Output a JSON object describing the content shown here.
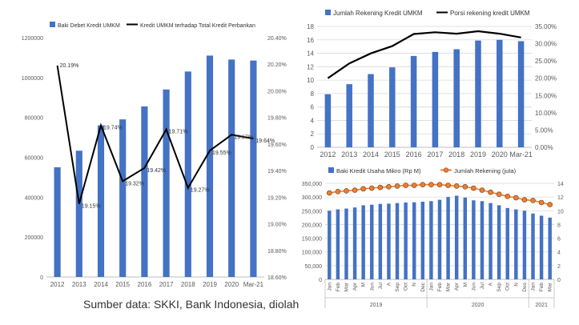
{
  "source_text": "Sumber data: SKKI, Bank Indonesia, diolah",
  "colors": {
    "bar": "#4472C4",
    "line": "#000000",
    "marker": "#ED7D31",
    "grid": "#D9D9D9",
    "axis_text": "#595959"
  },
  "chart_data": [
    {
      "type": "bar+line",
      "title": "",
      "categories": [
        "2012",
        "2013",
        "2014",
        "2015",
        "2016",
        "2017",
        "2018",
        "2019",
        "2020",
        "Mar-21"
      ],
      "series": [
        {
          "name": "Baki Debet Kredit UMKM",
          "axis": "left",
          "values": [
            550000,
            633000,
            760000,
            790000,
            855000,
            940000,
            1030000,
            1110000,
            1090000,
            1085000
          ]
        },
        {
          "name": "Kredit UMKM terhadap Total Kredit Perbankan",
          "axis": "right",
          "values": [
            20.19,
            19.15,
            19.74,
            19.32,
            19.42,
            19.71,
            19.27,
            19.55,
            19.67,
            19.64
          ],
          "labels": [
            "20.19%",
            "19.15%",
            "19.74%",
            "19.32%",
            "19.42%",
            "19.71%",
            "19.27%",
            "19.55%",
            "19.67%",
            "19.64%"
          ]
        }
      ],
      "ylim_left": [
        0,
        1200000
      ],
      "yticks_left": [
        "0",
        "200000",
        "400000",
        "600000",
        "800000",
        "1000000",
        "1200000"
      ],
      "ylim_right": [
        18.6,
        20.4
      ],
      "yticks_right": [
        "18.60%",
        "18.80%",
        "19.00%",
        "19.20%",
        "19.40%",
        "19.60%",
        "19.80%",
        "20.00%",
        "20.20%",
        "20.40%"
      ],
      "legend": "top",
      "grid": false
    },
    {
      "type": "bar+line",
      "title": "",
      "categories": [
        "2012",
        "2013",
        "2014",
        "2015",
        "2016",
        "2017",
        "2018",
        "2019",
        "2020",
        "Mar-21"
      ],
      "series": [
        {
          "name": "Jumlah Rekening Kredit UMKM",
          "axis": "left",
          "values": [
            7.9,
            9.4,
            10.9,
            11.9,
            13.6,
            14.2,
            14.6,
            15.9,
            16.0,
            15.8
          ]
        },
        {
          "name": "Porsi rekening kredit UMKM",
          "axis": "right",
          "values": [
            20.0,
            24.3,
            27.2,
            29.3,
            32.8,
            33.3,
            32.9,
            33.6,
            32.9,
            31.8
          ]
        }
      ],
      "ylim_left": [
        0,
        18
      ],
      "yticks_left": [
        "0",
        "2",
        "4",
        "6",
        "8",
        "10",
        "12",
        "14",
        "16",
        "18"
      ],
      "ylim_right": [
        0,
        35
      ],
      "yticks_right": [
        "0.00%",
        "5.00%",
        "10.00%",
        "15.00%",
        "20.00%",
        "25.00%",
        "30.00%",
        "35.00%"
      ],
      "legend": "top",
      "grid": true
    },
    {
      "type": "bar+line",
      "title": "",
      "categories": [
        "Jan",
        "Feb",
        "Mar",
        "Apr",
        "Mei",
        "Jun",
        "Jul",
        "Agt",
        "Sep",
        "Okt",
        "Nov",
        "Des",
        "Jan",
        "Feb",
        "Mar",
        "Apr",
        "Mei",
        "Jun",
        "Jul",
        "Agt",
        "Sep",
        "Okt",
        "Nov",
        "Des",
        "Jan",
        "Feb",
        "Mar"
      ],
      "tick_labels": [
        "Jan",
        "Feb",
        "Mar",
        "Apr",
        "M",
        "Jun",
        "Jul",
        "A",
        "Sep",
        "Oct",
        "N",
        "Dec",
        "Jan",
        "Feb",
        "Mar",
        "Apr",
        "M",
        "Jun",
        "Jul",
        "A",
        "Sep",
        "Oct",
        "N",
        "Des",
        "Jan",
        "Feb",
        "Mar"
      ],
      "year_groups": [
        {
          "label": "2019",
          "count": 12
        },
        {
          "label": "2020",
          "count": 12
        },
        {
          "label": "2021",
          "count": 3
        }
      ],
      "series": [
        {
          "name": "Baki Kredit Usaha Mikro (Rp M)",
          "axis": "left",
          "values": [
            250000,
            255000,
            258000,
            262000,
            270000,
            272000,
            275000,
            276000,
            278000,
            280000,
            281000,
            283000,
            285000,
            290000,
            300000,
            305000,
            298000,
            288000,
            285000,
            278000,
            270000,
            260000,
            255000,
            250000,
            240000,
            232000,
            225000
          ]
        },
        {
          "name": "Jumlah Rekening (juta)",
          "axis": "right",
          "values": [
            12.6,
            12.8,
            12.9,
            13.0,
            13.2,
            13.3,
            13.4,
            13.5,
            13.6,
            13.7,
            13.7,
            13.8,
            13.8,
            13.8,
            13.7,
            13.6,
            13.5,
            13.3,
            13.0,
            12.7,
            12.4,
            12.1,
            11.9,
            11.6,
            11.5,
            11.2,
            10.9
          ]
        }
      ],
      "ylim_left": [
        0,
        350000
      ],
      "yticks_left": [
        "0",
        "50,000",
        "100,000",
        "150,000",
        "200,000",
        "250,000",
        "300,000",
        "350,000"
      ],
      "ylim_right": [
        0,
        14
      ],
      "yticks_right": [
        "0",
        "2",
        "4",
        "6",
        "8",
        "10",
        "12",
        "14"
      ],
      "legend": "top",
      "grid": true
    }
  ]
}
